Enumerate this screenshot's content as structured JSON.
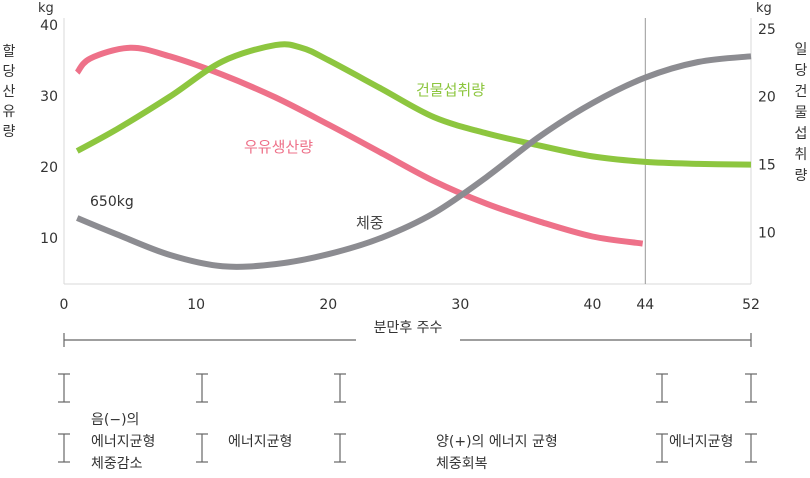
{
  "chart_data": {
    "type": "line",
    "x_axis": {
      "label": "분만후 주수",
      "ticks": [
        0,
        10,
        20,
        30,
        40,
        44,
        52
      ],
      "range": [
        0,
        52
      ]
    },
    "y_left": {
      "unit": "kg",
      "label_chars": [
        "할",
        "당",
        "산",
        "유",
        "량"
      ],
      "ticks": [
        10,
        20,
        30,
        40
      ],
      "range": [
        3.5,
        41
      ]
    },
    "y_right": {
      "unit": "kg",
      "label_chars": [
        "일",
        "당",
        "건",
        "물",
        "섭",
        "취",
        "량"
      ],
      "ticks": [
        10,
        15,
        20,
        25
      ],
      "range": [
        6.2,
        25.8
      ]
    },
    "reference_line_week": 44,
    "series": [
      {
        "name": "우유생산량",
        "axis": "left",
        "color": "#ee7189",
        "x": [
          1,
          2,
          5,
          8,
          12,
          16,
          20,
          24,
          28,
          32,
          36,
          40,
          43.8
        ],
        "y": [
          33.3,
          35.3,
          36.8,
          35.6,
          33.0,
          29.8,
          26.0,
          22.0,
          18.0,
          14.8,
          12.3,
          10.2,
          9.2
        ]
      },
      {
        "name": "건물섭취량",
        "axis": "right",
        "color": "#8dc63f",
        "x": [
          1,
          4,
          8,
          12,
          16,
          18,
          20,
          24,
          28,
          32,
          36,
          40,
          44,
          48,
          52
        ],
        "y": [
          16.0,
          17.6,
          20.0,
          22.6,
          23.8,
          23.6,
          22.7,
          20.6,
          18.5,
          17.3,
          16.4,
          15.6,
          15.2,
          15.05,
          15.0
        ]
      },
      {
        "name": "체중",
        "axis": "left",
        "color": "#8c8c91",
        "x": [
          1,
          4,
          8,
          12,
          16,
          20,
          24,
          28,
          32,
          36,
          40,
          44,
          48,
          52
        ],
        "y": [
          12.8,
          10.5,
          7.6,
          6.0,
          6.3,
          7.7,
          10.0,
          13.5,
          18.6,
          24.3,
          29.0,
          32.6,
          34.8,
          35.6
        ]
      }
    ],
    "annotations": [
      {
        "text": "우유생산량",
        "series": "우유생산량"
      },
      {
        "text": "건물섭취량",
        "series": "건물섭취량"
      },
      {
        "text": "체중",
        "series": "체중"
      },
      {
        "text": "650kg",
        "series": "체중"
      }
    ],
    "phases": [
      {
        "lines": [
          "음(−)의",
          "에너지균형",
          "체중감소"
        ]
      },
      {
        "lines": [
          "에너지균형"
        ]
      },
      {
        "lines": [
          "양(+)의 에너지 균형",
          "체중회복"
        ]
      },
      {
        "lines": [
          "에너지균형"
        ]
      }
    ]
  }
}
